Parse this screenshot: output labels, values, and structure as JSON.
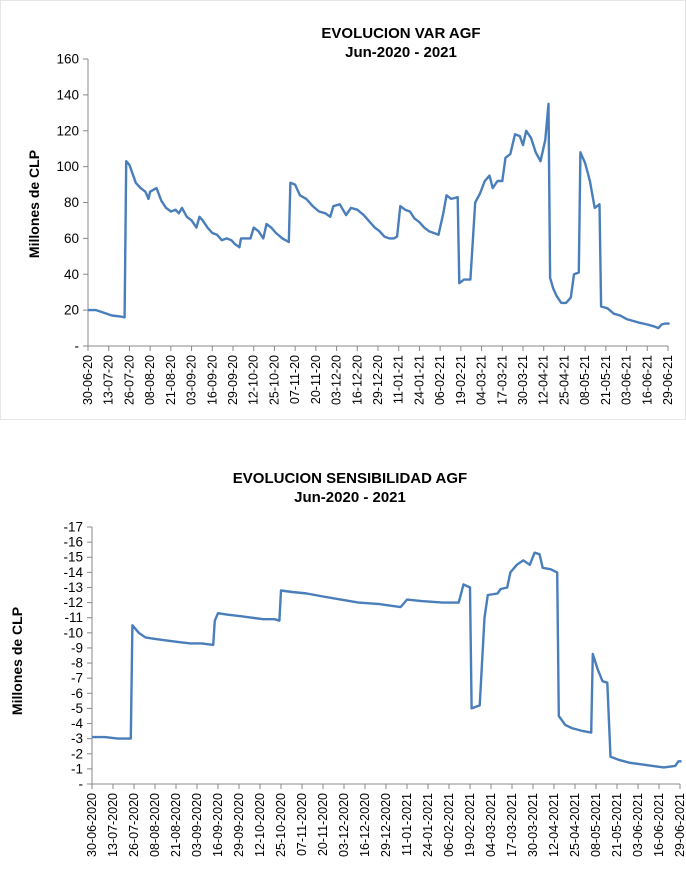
{
  "charts": [
    {
      "title_line1": "EVOLUCION VAR AGF",
      "title_line2": "Jun-2020 - 2021",
      "ylabel": "Millones de CLP"
    },
    {
      "title_line1": "EVOLUCION SENSIBILIDAD AGF",
      "title_line2": "Jun-2020 - 2021",
      "ylabel": "Millones de CLP"
    }
  ],
  "chart_data": [
    {
      "type": "line",
      "title": "EVOLUCION VAR AGF Jun-2020 - 2021",
      "xlabel": "",
      "ylabel": "Millones de CLP",
      "ylim": [
        0,
        160
      ],
      "y_ticks": [
        0,
        20,
        40,
        60,
        80,
        100,
        120,
        140,
        160
      ],
      "y_tick_labels": [
        "-",
        "20",
        "40",
        "60",
        "80",
        "100",
        "120",
        "140",
        "160"
      ],
      "x_tick_labels": [
        "30-06-20",
        "13-07-20",
        "26-07-20",
        "08-08-20",
        "21-08-20",
        "03-09-20",
        "16-09-20",
        "29-09-20",
        "12-10-20",
        "25-10-20",
        "07-11-20",
        "20-11-20",
        "03-12-20",
        "16-12-20",
        "29-12-20",
        "11-01-21",
        "24-01-21",
        "06-02-21",
        "19-02-21",
        "04-03-21",
        "17-03-21",
        "30-03-21",
        "12-04-21",
        "25-04-21",
        "08-05-21",
        "21-05-21",
        "03-06-21",
        "16-06-21",
        "29-06-21"
      ],
      "grid": false,
      "legend": "none",
      "color": "#4a7ebb",
      "series": [
        {
          "values": [
            [
              "2020-06-30",
              20
            ],
            [
              "2020-07-05",
              20
            ],
            [
              "2020-07-10",
              18.5
            ],
            [
              "2020-07-15",
              17
            ],
            [
              "2020-07-20",
              16.5
            ],
            [
              "2020-07-23",
              16
            ],
            [
              "2020-07-24",
              103
            ],
            [
              "2020-07-26",
              101
            ],
            [
              "2020-07-28",
              96
            ],
            [
              "2020-07-30",
              91
            ],
            [
              "2020-08-02",
              88
            ],
            [
              "2020-08-05",
              86
            ],
            [
              "2020-08-07",
              82
            ],
            [
              "2020-08-08",
              86
            ],
            [
              "2020-08-12",
              88
            ],
            [
              "2020-08-15",
              81
            ],
            [
              "2020-08-18",
              77
            ],
            [
              "2020-08-21",
              75
            ],
            [
              "2020-08-24",
              76
            ],
            [
              "2020-08-26",
              74
            ],
            [
              "2020-08-28",
              77
            ],
            [
              "2020-08-31",
              72
            ],
            [
              "2020-09-03",
              70
            ],
            [
              "2020-09-06",
              66
            ],
            [
              "2020-09-08",
              72
            ],
            [
              "2020-09-10",
              70
            ],
            [
              "2020-09-13",
              66
            ],
            [
              "2020-09-16",
              63
            ],
            [
              "2020-09-19",
              62
            ],
            [
              "2020-09-22",
              59
            ],
            [
              "2020-09-25",
              60
            ],
            [
              "2020-09-28",
              59
            ],
            [
              "2020-09-30",
              57
            ],
            [
              "2020-10-03",
              55
            ],
            [
              "2020-10-04",
              60
            ],
            [
              "2020-10-07",
              60
            ],
            [
              "2020-10-10",
              60
            ],
            [
              "2020-10-12",
              66
            ],
            [
              "2020-10-15",
              64
            ],
            [
              "2020-10-18",
              60
            ],
            [
              "2020-10-20",
              68
            ],
            [
              "2020-10-23",
              66
            ],
            [
              "2020-10-26",
              63
            ],
            [
              "2020-10-30",
              60
            ],
            [
              "2020-11-03",
              58
            ],
            [
              "2020-11-04",
              91
            ],
            [
              "2020-11-07",
              90
            ],
            [
              "2020-11-10",
              84
            ],
            [
              "2020-11-14",
              82
            ],
            [
              "2020-11-18",
              78
            ],
            [
              "2020-11-22",
              75
            ],
            [
              "2020-11-26",
              74
            ],
            [
              "2020-11-29",
              72
            ],
            [
              "2020-12-01",
              78
            ],
            [
              "2020-12-05",
              79
            ],
            [
              "2020-12-09",
              73
            ],
            [
              "2020-12-12",
              77
            ],
            [
              "2020-12-16",
              76
            ],
            [
              "2020-12-20",
              73
            ],
            [
              "2020-12-24",
              69
            ],
            [
              "2020-12-27",
              66
            ],
            [
              "2020-12-30",
              64
            ],
            [
              "2021-01-02",
              61
            ],
            [
              "2021-01-05",
              60
            ],
            [
              "2021-01-08",
              60
            ],
            [
              "2021-01-10",
              61
            ],
            [
              "2021-01-12",
              78
            ],
            [
              "2021-01-15",
              76
            ],
            [
              "2021-01-18",
              75
            ],
            [
              "2021-01-21",
              71
            ],
            [
              "2021-01-24",
              69
            ],
            [
              "2021-01-27",
              66
            ],
            [
              "2021-01-30",
              64
            ],
            [
              "2021-02-02",
              63
            ],
            [
              "2021-02-05",
              62
            ],
            [
              "2021-02-08",
              74
            ],
            [
              "2021-02-10",
              84
            ],
            [
              "2021-02-13",
              82
            ],
            [
              "2021-02-17",
              83
            ],
            [
              "2021-02-18",
              35
            ],
            [
              "2021-02-21",
              37
            ],
            [
              "2021-02-25",
              37
            ],
            [
              "2021-02-28",
              80
            ],
            [
              "2021-03-03",
              85
            ],
            [
              "2021-03-06",
              92
            ],
            [
              "2021-03-09",
              95
            ],
            [
              "2021-03-11",
              88
            ],
            [
              "2021-03-14",
              92
            ],
            [
              "2021-03-17",
              92
            ],
            [
              "2021-03-19",
              105
            ],
            [
              "2021-03-22",
              107
            ],
            [
              "2021-03-25",
              118
            ],
            [
              "2021-03-28",
              117
            ],
            [
              "2021-03-30",
              112
            ],
            [
              "2021-04-01",
              120
            ],
            [
              "2021-04-04",
              116
            ],
            [
              "2021-04-07",
              108
            ],
            [
              "2021-04-10",
              103
            ],
            [
              "2021-04-13",
              115
            ],
            [
              "2021-04-15",
              135
            ],
            [
              "2021-04-16",
              38
            ],
            [
              "2021-04-18",
              32
            ],
            [
              "2021-04-20",
              28
            ],
            [
              "2021-04-23",
              24
            ],
            [
              "2021-04-26",
              24
            ],
            [
              "2021-04-29",
              27
            ],
            [
              "2021-05-01",
              40
            ],
            [
              "2021-05-04",
              41
            ],
            [
              "2021-05-05",
              108
            ],
            [
              "2021-05-08",
              102
            ],
            [
              "2021-05-11",
              92
            ],
            [
              "2021-05-14",
              77
            ],
            [
              "2021-05-17",
              79
            ],
            [
              "2021-05-18",
              22
            ],
            [
              "2021-05-22",
              21
            ],
            [
              "2021-05-26",
              18
            ],
            [
              "2021-05-30",
              17
            ],
            [
              "2021-06-03",
              15
            ],
            [
              "2021-06-07",
              14
            ],
            [
              "2021-06-11",
              13
            ],
            [
              "2021-06-16",
              12
            ],
            [
              "2021-06-20",
              11
            ],
            [
              "2021-06-23",
              10
            ],
            [
              "2021-06-25",
              12
            ],
            [
              "2021-06-27",
              12.5
            ],
            [
              "2021-06-30",
              12.5
            ]
          ]
        }
      ]
    },
    {
      "type": "line",
      "title": "EVOLUCION SENSIBILIDAD AGF Jun-2020 - 2021",
      "xlabel": "",
      "ylabel": "Millones de CLP",
      "ylim": [
        0,
        -17
      ],
      "y_axis_inverted": true,
      "y_ticks": [
        0,
        -1,
        -2,
        -3,
        -4,
        -5,
        -6,
        -7,
        -8,
        -9,
        -10,
        -11,
        -12,
        -13,
        -14,
        -15,
        -16,
        -17
      ],
      "y_tick_labels": [
        "-",
        "-1",
        "-2",
        "-3",
        "-4",
        "-5",
        "-6",
        "-7",
        "-8",
        "-9",
        "-10",
        "-11",
        "-12",
        "-13",
        "-14",
        "-15",
        "-16",
        "-17"
      ],
      "x_tick_labels": [
        "30-06-2020",
        "13-07-2020",
        "26-07-2020",
        "08-08-2020",
        "21-08-2020",
        "03-09-2020",
        "16-09-2020",
        "29-09-2020",
        "12-10-2020",
        "25-10-2020",
        "07-11-2020",
        "20-11-2020",
        "03-12-2020",
        "16-12-2020",
        "29-12-2020",
        "11-01-2021",
        "24-01-2021",
        "06-02-2021",
        "19-02-2021",
        "04-03-2021",
        "17-03-2021",
        "30-03-2021",
        "12-04-2021",
        "25-04-2021",
        "08-05-2021",
        "21-05-2021",
        "03-06-2021",
        "16-06-2021",
        "29-06-2021"
      ],
      "grid": false,
      "legend": "none",
      "color": "#4a7ebb",
      "series": [
        {
          "values": [
            [
              "2020-06-30",
              -3.1
            ],
            [
              "2020-07-08",
              -3.1
            ],
            [
              "2020-07-16",
              -3.0
            ],
            [
              "2020-07-24",
              -3.0
            ],
            [
              "2020-07-25",
              -10.5
            ],
            [
              "2020-07-29",
              -10.0
            ],
            [
              "2020-08-02",
              -9.7
            ],
            [
              "2020-08-08",
              -9.6
            ],
            [
              "2020-08-15",
              -9.5
            ],
            [
              "2020-08-22",
              -9.4
            ],
            [
              "2020-08-30",
              -9.3
            ],
            [
              "2020-09-06",
              -9.3
            ],
            [
              "2020-09-13",
              -9.2
            ],
            [
              "2020-09-14",
              -10.8
            ],
            [
              "2020-09-16",
              -11.3
            ],
            [
              "2020-09-22",
              -11.2
            ],
            [
              "2020-09-30",
              -11.1
            ],
            [
              "2020-10-07",
              -11.0
            ],
            [
              "2020-10-14",
              -10.9
            ],
            [
              "2020-10-21",
              -10.9
            ],
            [
              "2020-10-24",
              -10.8
            ],
            [
              "2020-10-25",
              -12.8
            ],
            [
              "2020-11-01",
              -12.7
            ],
            [
              "2020-11-10",
              -12.6
            ],
            [
              "2020-11-20",
              -12.4
            ],
            [
              "2020-12-01",
              -12.2
            ],
            [
              "2020-12-12",
              -12.0
            ],
            [
              "2020-12-25",
              -11.9
            ],
            [
              "2021-01-07",
              -11.7
            ],
            [
              "2021-01-11",
              -12.2
            ],
            [
              "2021-01-20",
              -12.1
            ],
            [
              "2021-02-02",
              -12.0
            ],
            [
              "2021-02-12",
              -12.0
            ],
            [
              "2021-02-15",
              -13.2
            ],
            [
              "2021-02-19",
              -13.0
            ],
            [
              "2021-02-20",
              -5.0
            ],
            [
              "2021-02-25",
              -5.2
            ],
            [
              "2021-02-28",
              -11.0
            ],
            [
              "2021-03-02",
              -12.5
            ],
            [
              "2021-03-08",
              -12.6
            ],
            [
              "2021-03-10",
              -12.9
            ],
            [
              "2021-03-14",
              -13.0
            ],
            [
              "2021-03-16",
              -14.0
            ],
            [
              "2021-03-20",
              -14.5
            ],
            [
              "2021-03-24",
              -14.8
            ],
            [
              "2021-03-28",
              -14.5
            ],
            [
              "2021-03-31",
              -15.3
            ],
            [
              "2021-04-03",
              -15.2
            ],
            [
              "2021-04-05",
              -14.3
            ],
            [
              "2021-04-10",
              -14.2
            ],
            [
              "2021-04-14",
              -14.0
            ],
            [
              "2021-04-15",
              -4.5
            ],
            [
              "2021-04-19",
              -3.9
            ],
            [
              "2021-04-23",
              -3.7
            ],
            [
              "2021-04-30",
              -3.5
            ],
            [
              "2021-05-05",
              -3.4
            ],
            [
              "2021-05-06",
              -8.6
            ],
            [
              "2021-05-09",
              -7.6
            ],
            [
              "2021-05-12",
              -6.8
            ],
            [
              "2021-05-15",
              -6.7
            ],
            [
              "2021-05-17",
              -1.8
            ],
            [
              "2021-05-22",
              -1.6
            ],
            [
              "2021-05-29",
              -1.4
            ],
            [
              "2021-06-05",
              -1.3
            ],
            [
              "2021-06-12",
              -1.2
            ],
            [
              "2021-06-19",
              -1.1
            ],
            [
              "2021-06-26",
              -1.2
            ],
            [
              "2021-06-28",
              -1.5
            ],
            [
              "2021-06-30",
              -1.5
            ]
          ]
        }
      ]
    }
  ]
}
